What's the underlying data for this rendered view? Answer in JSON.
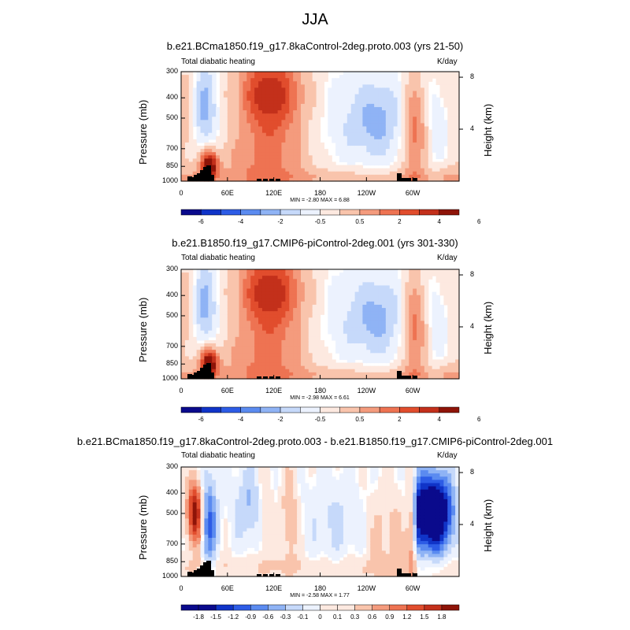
{
  "figure_title": "JJA",
  "colors": {
    "neg": [
      "#0a0a8c",
      "#1034c8",
      "#2d5ce6",
      "#5b8bf0",
      "#8fb3f5",
      "#c6d9fa",
      "#ecf2fe"
    ],
    "pos": [
      "#fde9e0",
      "#f9c4ac",
      "#f49b7d",
      "#ee7352",
      "#e14d2d",
      "#c3301b",
      "#8e1408"
    ]
  },
  "chart_data": [
    {
      "type": "heatmap",
      "title": "b.e21.BCma1850.f19_g17.8kaControl-2deg.proto.003 (yrs 21-50)",
      "left_label": "Total diabatic heating",
      "right_label": "K/day",
      "ylabel": "Pressure (mb)",
      "ylabel_right": "Height (km)",
      "y_ticks": [
        "300",
        "400",
        "500",
        "700",
        "850",
        "1000"
      ],
      "y_right_ticks": [
        "8",
        "4"
      ],
      "x_ticks": [
        "0",
        "60E",
        "120E",
        "180",
        "120W",
        "60W"
      ],
      "min_max_text": "MIN = -2.80 MAX = 6.88",
      "colorbar_labels": [
        "-6",
        "-4",
        "-2",
        "-0.5",
        "0.5",
        "2",
        "4",
        "6"
      ],
      "min": -2.8,
      "max": 6.88
    },
    {
      "type": "heatmap",
      "title": "b.e21.B1850.f19_g17.CMIP6-piControl-2deg.001 (yrs 301-330)",
      "left_label": "Total diabatic heating",
      "right_label": "K/day",
      "ylabel": "Pressure (mb)",
      "ylabel_right": "Height (km)",
      "y_ticks": [
        "300",
        "400",
        "500",
        "700",
        "850",
        "1000"
      ],
      "y_right_ticks": [
        "8",
        "4"
      ],
      "x_ticks": [
        "0",
        "60E",
        "120E",
        "180",
        "120W",
        "60W"
      ],
      "min_max_text": "MIN = -2.98 MAX = 6.61",
      "colorbar_labels": [
        "-6",
        "-4",
        "-2",
        "-0.5",
        "0.5",
        "2",
        "4",
        "6"
      ],
      "min": -2.98,
      "max": 6.61
    },
    {
      "type": "heatmap",
      "title": "b.e21.BCma1850.f19_g17.8kaControl-2deg.proto.003 - b.e21.B1850.f19_g17.CMIP6-piControl-2deg.001",
      "left_label": "Total diabatic heating",
      "right_label": "K/day",
      "ylabel": "Pressure (mb)",
      "ylabel_right": "Height (km)",
      "y_ticks": [
        "300",
        "400",
        "500",
        "700",
        "850",
        "1000"
      ],
      "y_right_ticks": [
        "8",
        "4"
      ],
      "x_ticks": [
        "0",
        "60E",
        "120E",
        "180",
        "120W",
        "60W"
      ],
      "min_max_text": "MIN = -2.58 MAX = 1.77",
      "colorbar_labels": [
        "-1.8",
        "-1.5",
        "-1.2",
        "-0.9",
        "-0.6",
        "-0.3",
        "-0.1",
        "0",
        "0.1",
        "0.3",
        "0.6",
        "0.9",
        "1.2",
        "1.5",
        "1.8"
      ],
      "min": -2.58,
      "max": 1.77
    }
  ]
}
